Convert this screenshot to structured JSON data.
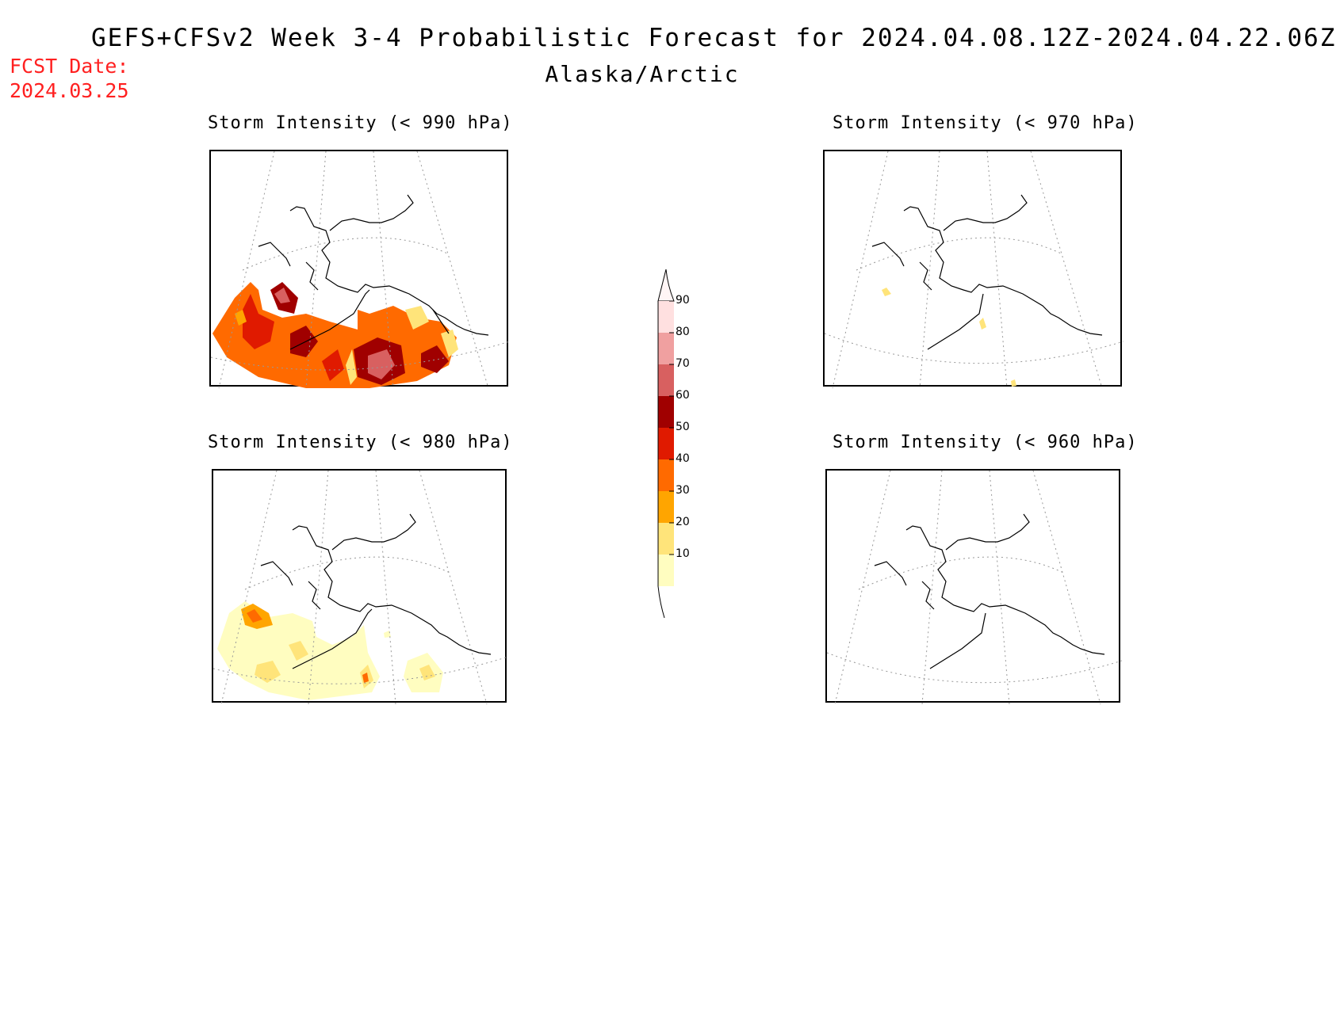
{
  "header": {
    "title": "GEFS+CFSv2 Week 3-4 Probabilistic Forecast for 2024.04.08.12Z-2024.04.22.06Z",
    "subtitle": "Alaska/Arctic",
    "fcst_label": "FCST Date:",
    "fcst_date": "2024.03.25"
  },
  "panels": [
    {
      "title": "Storm Intensity (< 990 hPa)"
    },
    {
      "title": "Storm Intensity (< 970 hPa)"
    },
    {
      "title": "Storm Intensity (< 980 hPa)"
    },
    {
      "title": "Storm Intensity (< 960 hPa)"
    }
  ],
  "colorbar": {
    "levels": [
      "10",
      "20",
      "30",
      "40",
      "50",
      "60",
      "70",
      "80",
      "90"
    ],
    "colors": [
      "#fffdc0",
      "#ffe47a",
      "#ffa500",
      "#ff6a00",
      "#e01a00",
      "#a00000",
      "#d86060",
      "#f0a0a0",
      "#ffe0e0"
    ]
  }
}
